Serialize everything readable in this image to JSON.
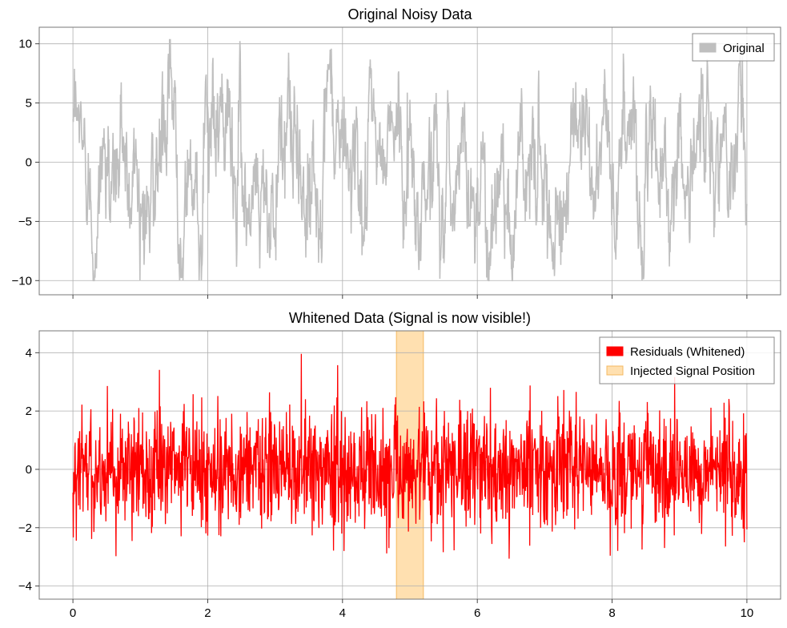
{
  "chart_data": [
    {
      "type": "line",
      "title": "Original Noisy Data",
      "xlabel": "",
      "ylabel": "",
      "xlim": [
        -0.5,
        10.5
      ],
      "ylim": [
        -11.2,
        11.4
      ],
      "xticks": [
        0,
        2,
        4,
        6,
        8,
        10
      ],
      "yticks": [
        -10,
        -5,
        0,
        5,
        10
      ],
      "ytick_labels": [
        "−10",
        "−5",
        "0",
        "5",
        "10"
      ],
      "show_x_tick_labels": false,
      "grid": true,
      "legend_position": "upper right",
      "series": [
        {
          "name": "Original",
          "color": "#bfbfbf",
          "x_range": [
            0,
            10
          ],
          "approx_min": -10.0,
          "approx_max": 10.4,
          "notes_hidden": null
        }
      ]
    },
    {
      "type": "line",
      "title": "Whitened Data (Signal is now visible!)",
      "xlabel": "",
      "ylabel": "",
      "xlim": [
        -0.5,
        10.5
      ],
      "ylim": [
        -4.45,
        4.75
      ],
      "xticks": [
        0,
        2,
        4,
        6,
        8,
        10
      ],
      "xtick_labels": [
        "0",
        "2",
        "4",
        "6",
        "8",
        "10"
      ],
      "yticks": [
        -4,
        -2,
        0,
        2,
        4
      ],
      "ytick_labels": [
        "−4",
        "−2",
        "0",
        "2",
        "4"
      ],
      "show_x_tick_labels": true,
      "grid": true,
      "legend_position": "upper right",
      "series": [
        {
          "name": "Residuals (Whitened)",
          "color": "#ff0000",
          "x_range": [
            0,
            10
          ],
          "approx_min": -4.0,
          "approx_max": 4.3
        }
      ],
      "spans": [
        {
          "name": "Injected Signal Position",
          "x_start": 4.8,
          "x_end": 5.2,
          "color": "#ffe0b0",
          "edge": "#f4b860"
        }
      ]
    }
  ]
}
